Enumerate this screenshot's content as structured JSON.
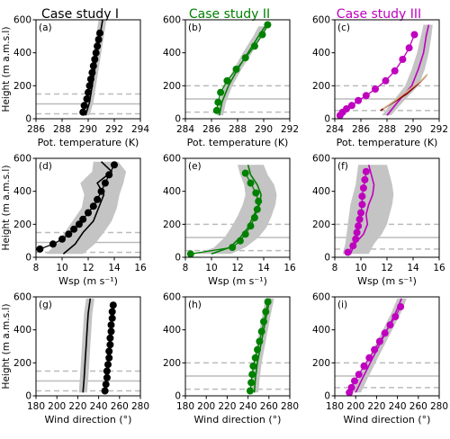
{
  "titles": [
    {
      "text": "Case study I",
      "color": "#000000"
    },
    {
      "text": "Case study II",
      "color": "#008000"
    },
    {
      "text": "Case study III",
      "color": "#bf00bf"
    }
  ],
  "row_ylabel": "Height (m a.m.s.l)",
  "chart_data": [
    {
      "type": "line",
      "panel_label": "(a)",
      "row": 0,
      "col": 0,
      "xlabel": "Pot. temperature (K)",
      "ylabel": "Height (m a.m.s.l)",
      "xlim": [
        286,
        294
      ],
      "ylim": [
        0,
        600
      ],
      "xticks": [
        "286",
        "288",
        "290",
        "292",
        "294"
      ],
      "yticks": [
        "0",
        "200",
        "400",
        "600"
      ],
      "hlines_solid": [
        90
      ],
      "hlines_dashed": [
        30,
        150
      ],
      "color": "#000000",
      "band": {
        "y": [
          20,
          100,
          200,
          300,
          400,
          500,
          600
        ],
        "lo": [
          289.5,
          289.8,
          290.0,
          290.2,
          290.4,
          290.6,
          290.8
        ],
        "hi": [
          290.1,
          290.4,
          290.6,
          290.8,
          291.0,
          291.2,
          291.4
        ]
      },
      "series": [
        {
          "style": "line",
          "x": [
            289.8,
            290.1,
            290.3,
            290.5,
            290.7,
            290.9,
            291.1
          ],
          "y": [
            20,
            100,
            200,
            300,
            400,
            500,
            600
          ]
        },
        {
          "style": "markers",
          "x": [
            289.6,
            289.7,
            289.9,
            290.0,
            290.1,
            290.2,
            290.3,
            290.4,
            290.5,
            290.6,
            290.7,
            290.8,
            290.9
          ],
          "y": [
            40,
            80,
            120,
            160,
            200,
            240,
            280,
            320,
            360,
            400,
            440,
            480,
            520
          ]
        }
      ]
    },
    {
      "type": "line",
      "panel_label": "(b)",
      "row": 0,
      "col": 1,
      "xlabel": "Pot. temperature (K)",
      "ylabel": "",
      "xlim": [
        284,
        292
      ],
      "ylim": [
        0,
        600
      ],
      "xticks": [
        "284",
        "286",
        "288",
        "290",
        "292"
      ],
      "yticks": [
        "0",
        "200",
        "400",
        "600"
      ],
      "hlines_solid": [
        120
      ],
      "hlines_dashed": [
        40,
        200
      ],
      "color": "#008000",
      "band": {
        "y": [
          20,
          100,
          200,
          300,
          400,
          500,
          560
        ],
        "lo": [
          286.4,
          286.6,
          287.0,
          287.7,
          288.4,
          289.2,
          289.6
        ],
        "hi": [
          286.9,
          287.1,
          287.6,
          288.3,
          289.1,
          289.9,
          290.4
        ]
      },
      "series": [
        {
          "style": "line",
          "x": [
            286.6,
            286.8,
            287.3,
            288.0,
            288.8,
            289.6,
            290.1
          ],
          "y": [
            20,
            100,
            200,
            300,
            400,
            500,
            560
          ]
        },
        {
          "style": "markers",
          "x": [
            286.4,
            286.5,
            286.7,
            287.2,
            287.9,
            288.6,
            289.3,
            289.9,
            290.3
          ],
          "y": [
            50,
            100,
            160,
            230,
            300,
            370,
            440,
            510,
            570
          ]
        }
      ]
    },
    {
      "type": "line",
      "panel_label": "(c)",
      "row": 0,
      "col": 2,
      "xlabel": "Pot. temperature (K)",
      "ylabel": "",
      "xlim": [
        284,
        292
      ],
      "ylim": [
        0,
        600
      ],
      "xticks": [
        "284",
        "286",
        "288",
        "290",
        "292"
      ],
      "yticks": [
        "0",
        "200",
        "400",
        "600"
      ],
      "hlines_solid": [
        120
      ],
      "hlines_dashed": [
        50,
        200
      ],
      "color": "#bf00bf",
      "band": {
        "y": [
          20,
          100,
          200,
          300,
          400,
          500,
          570
        ],
        "lo": [
          287.6,
          288.4,
          289.4,
          289.9,
          290.3,
          290.6,
          290.8
        ],
        "hi": [
          288.3,
          289.2,
          290.4,
          290.9,
          291.2,
          291.4,
          291.5
        ]
      },
      "series": [
        {
          "style": "line",
          "x": [
            288.0,
            288.8,
            289.9,
            290.4,
            290.8,
            291.0,
            291.2
          ],
          "y": [
            20,
            100,
            200,
            300,
            400,
            500,
            570
          ]
        },
        {
          "style": "line",
          "color": "#8b0000",
          "x": [
            287.5,
            288.5,
            289.5,
            290.5,
            291.0
          ],
          "y": [
            50,
            100,
            150,
            220,
            260
          ]
        },
        {
          "style": "line",
          "color": "#d2b48c",
          "x": [
            287.7,
            288.6,
            289.6,
            290.6,
            291.1
          ],
          "y": [
            60,
            110,
            170,
            230,
            270
          ]
        },
        {
          "style": "markers",
          "x": [
            284.4,
            284.6,
            284.9,
            285.3,
            285.8,
            286.4,
            287.1,
            287.9,
            288.6,
            289.2,
            289.7,
            290.1
          ],
          "y": [
            20,
            40,
            60,
            80,
            110,
            140,
            180,
            230,
            290,
            360,
            430,
            510
          ]
        }
      ]
    },
    {
      "type": "line",
      "panel_label": "(d)",
      "row": 1,
      "col": 0,
      "xlabel": "Wsp (m s⁻¹)",
      "ylabel": "Height (m a.m.s.l)",
      "xlim": [
        8,
        16
      ],
      "ylim": [
        0,
        600
      ],
      "xticks": [
        "8",
        "10",
        "12",
        "14",
        "16"
      ],
      "yticks": [
        "0",
        "200",
        "400",
        "600"
      ],
      "hlines_solid": [
        90
      ],
      "hlines_dashed": [
        30,
        150
      ],
      "color": "#000000",
      "band": {
        "y": [
          20,
          80,
          150,
          220,
          300,
          380,
          450,
          520,
          580
        ],
        "lo": [
          8.8,
          9.5,
          10.2,
          10.8,
          11.5,
          11.7,
          11.4,
          12.3,
          12.4
        ],
        "hi": [
          11.6,
          12.5,
          13.2,
          13.8,
          14.2,
          14.4,
          14.7,
          14.9,
          14.3
        ]
      },
      "series": [
        {
          "style": "line",
          "x": [
            10.1,
            11.0,
            11.6,
            12.4,
            12.8,
            13.2,
            12.7,
            13.8,
            13.0
          ],
          "y": [
            20,
            80,
            150,
            220,
            300,
            380,
            450,
            520,
            580
          ]
        },
        {
          "style": "markers",
          "x": [
            8.3,
            9.3,
            10.0,
            10.5,
            10.9,
            11.3,
            11.6,
            12.0,
            12.4,
            12.7,
            13.0,
            13.3,
            13.6,
            14.0
          ],
          "y": [
            50,
            80,
            110,
            140,
            170,
            200,
            230,
            270,
            310,
            350,
            400,
            450,
            500,
            560
          ]
        }
      ]
    },
    {
      "type": "line",
      "panel_label": "(e)",
      "row": 1,
      "col": 1,
      "xlabel": "Wsp (m s⁻¹)",
      "ylabel": "",
      "xlim": [
        8,
        16
      ],
      "ylim": [
        0,
        600
      ],
      "xticks": [
        "8",
        "10",
        "12",
        "14",
        "16"
      ],
      "yticks": [
        "0",
        "200",
        "400",
        "600"
      ],
      "hlines_solid": [
        120
      ],
      "hlines_dashed": [
        40,
        200
      ],
      "color": "#008000",
      "band": {
        "y": [
          20,
          60,
          120,
          180,
          250,
          320,
          380,
          440,
          500,
          560
        ],
        "lo": [
          8.9,
          10.2,
          11.0,
          11.5,
          12.0,
          12.4,
          12.6,
          12.5,
          12.2,
          12.0
        ],
        "hi": [
          11.5,
          12.6,
          13.6,
          14.2,
          14.6,
          14.9,
          15.0,
          14.8,
          14.3,
          14.0
        ]
      },
      "series": [
        {
          "style": "line",
          "x": [
            10.0,
            11.4,
            12.2,
            12.8,
            13.2,
            13.7,
            13.8,
            13.5,
            13.0,
            12.8
          ],
          "y": [
            20,
            60,
            120,
            180,
            250,
            320,
            380,
            440,
            500,
            560
          ]
        },
        {
          "style": "markers",
          "x": [
            8.4,
            11.6,
            12.2,
            12.6,
            13.0,
            13.3,
            13.5,
            13.6,
            13.4,
            13.0,
            12.6
          ],
          "y": [
            20,
            60,
            100,
            140,
            190,
            240,
            290,
            340,
            390,
            450,
            510
          ]
        }
      ]
    },
    {
      "type": "line",
      "panel_label": "(f)",
      "row": 1,
      "col": 2,
      "xlabel": "Wsp (m s⁻¹)",
      "ylabel": "",
      "xlim": [
        8,
        16
      ],
      "ylim": [
        0,
        600
      ],
      "xticks": [
        "8",
        "10",
        "12",
        "14",
        "16"
      ],
      "yticks": [
        "0",
        "200",
        "400",
        "600"
      ],
      "hlines_solid": [
        120
      ],
      "hlines_dashed": [
        50,
        200
      ],
      "color": "#bf00bf",
      "band": {
        "y": [
          20,
          80,
          140,
          200,
          260,
          320,
          380,
          440,
          500,
          560
        ],
        "lo": [
          8.6,
          8.8,
          8.9,
          9.0,
          9.1,
          9.2,
          9.4,
          9.6,
          9.7,
          9.8
        ],
        "hi": [
          10.6,
          11.0,
          11.6,
          12.0,
          12.2,
          12.4,
          12.5,
          12.4,
          12.2,
          12.0
        ]
      },
      "series": [
        {
          "style": "line",
          "x": [
            9.2,
            9.5,
            10.2,
            10.5,
            10.4,
            10.6,
            10.9,
            11.0,
            10.8,
            10.6
          ],
          "y": [
            20,
            80,
            140,
            200,
            260,
            320,
            380,
            440,
            500,
            560
          ]
        },
        {
          "style": "markers",
          "x": [
            9.0,
            9.4,
            9.6,
            9.7,
            9.8,
            9.9,
            10.0,
            10.1,
            10.1,
            10.2,
            10.3,
            10.4
          ],
          "y": [
            30,
            70,
            110,
            150,
            190,
            230,
            270,
            320,
            370,
            420,
            470,
            520
          ]
        }
      ]
    },
    {
      "type": "line",
      "panel_label": "(g)",
      "row": 2,
      "col": 0,
      "xlabel": "Wind direction (°)",
      "ylabel": "Height (m a.m.s.l)",
      "xlim": [
        180,
        280
      ],
      "ylim": [
        0,
        600
      ],
      "xticks": [
        "180",
        "200",
        "220",
        "240",
        "260",
        "280"
      ],
      "yticks": [
        "0",
        "200",
        "400",
        "600"
      ],
      "hlines_solid": [
        90
      ],
      "hlines_dashed": [
        30,
        150
      ],
      "color": "#000000",
      "band": {
        "y": [
          20,
          100,
          200,
          300,
          400,
          500,
          590
        ],
        "lo": [
          221,
          222,
          223,
          224,
          225,
          226,
          228
        ],
        "hi": [
          229,
          230,
          231,
          232,
          233,
          234,
          236
        ]
      },
      "series": [
        {
          "style": "line",
          "x": [
            225,
            226,
            227,
            228,
            229,
            230,
            232
          ],
          "y": [
            20,
            100,
            200,
            300,
            400,
            500,
            590
          ]
        },
        {
          "style": "markers",
          "x": [
            246,
            247,
            248,
            248,
            249,
            250,
            250,
            251,
            251,
            252,
            252,
            253,
            253,
            254
          ],
          "y": [
            30,
            70,
            110,
            150,
            190,
            230,
            270,
            310,
            350,
            390,
            430,
            470,
            510,
            550
          ]
        }
      ]
    },
    {
      "type": "line",
      "panel_label": "(h)",
      "row": 2,
      "col": 1,
      "xlabel": "Wind direction (°)",
      "ylabel": "",
      "xlim": [
        180,
        280
      ],
      "ylim": [
        0,
        600
      ],
      "xticks": [
        "180",
        "200",
        "220",
        "240",
        "260",
        "280"
      ],
      "yticks": [
        "0",
        "200",
        "400",
        "600"
      ],
      "hlines_solid": [
        120
      ],
      "hlines_dashed": [
        40,
        200
      ],
      "color": "#008000",
      "band": {
        "y": [
          20,
          100,
          200,
          300,
          400,
          500,
          590
        ],
        "lo": [
          242,
          243,
          245,
          248,
          251,
          254,
          257
        ],
        "hi": [
          250,
          251,
          253,
          256,
          259,
          262,
          265
        ]
      },
      "series": [
        {
          "style": "line",
          "x": [
            246,
            247,
            249,
            252,
            255,
            258,
            261
          ],
          "y": [
            20,
            100,
            200,
            300,
            400,
            500,
            590
          ]
        },
        {
          "style": "markers",
          "x": [
            242,
            243,
            244,
            245,
            247,
            249,
            251,
            253,
            255,
            257,
            259
          ],
          "y": [
            30,
            80,
            130,
            180,
            230,
            280,
            330,
            390,
            450,
            510,
            570
          ]
        }
      ]
    },
    {
      "type": "line",
      "panel_label": "(i)",
      "row": 2,
      "col": 2,
      "xlabel": "Wind direction (°)",
      "ylabel": "",
      "xlim": [
        180,
        280
      ],
      "ylim": [
        0,
        600
      ],
      "xticks": [
        "180",
        "200",
        "220",
        "240",
        "260",
        "280"
      ],
      "yticks": [
        "0",
        "200",
        "400",
        "600"
      ],
      "hlines_solid": [
        120
      ],
      "hlines_dashed": [
        50,
        200
      ],
      "color": "#bf00bf",
      "band": {
        "y": [
          20,
          100,
          200,
          300,
          400,
          500,
          590
        ],
        "lo": [
          196,
          202,
          210,
          218,
          226,
          234,
          240
        ],
        "hi": [
          205,
          211,
          219,
          227,
          235,
          243,
          249
        ]
      },
      "series": [
        {
          "style": "line",
          "x": [
            200,
            206,
            214,
            222,
            230,
            238,
            244
          ],
          "y": [
            20,
            100,
            200,
            300,
            400,
            500,
            590
          ]
        },
        {
          "style": "markers",
          "x": [
            194,
            196,
            199,
            203,
            208,
            213,
            218,
            223,
            228,
            233,
            238,
            243
          ],
          "y": [
            20,
            50,
            90,
            130,
            180,
            230,
            280,
            330,
            380,
            430,
            480,
            540
          ]
        }
      ]
    }
  ]
}
